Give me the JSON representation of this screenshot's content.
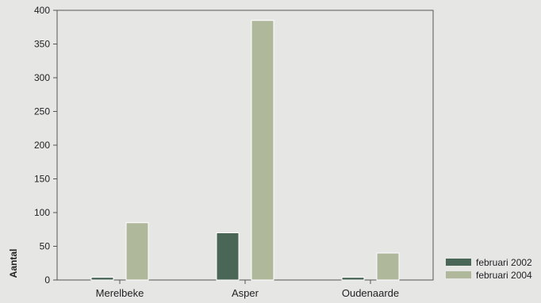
{
  "chart_data": {
    "type": "bar",
    "title": "",
    "xlabel": "",
    "ylabel": "Aantal",
    "ylim": [
      0,
      400
    ],
    "yticks": [
      0,
      50,
      100,
      150,
      200,
      250,
      300,
      350,
      400
    ],
    "categories": [
      "Merelbeke",
      "Asper",
      "Oudenaarde"
    ],
    "series": [
      {
        "name": "februari 2002",
        "color": "#4a6657",
        "values": [
          4,
          70,
          4
        ]
      },
      {
        "name": "februari 2004",
        "color": "#b0b89c",
        "values": [
          85,
          385,
          40
        ]
      }
    ],
    "grid": false,
    "legend_position": "bottom-right"
  }
}
